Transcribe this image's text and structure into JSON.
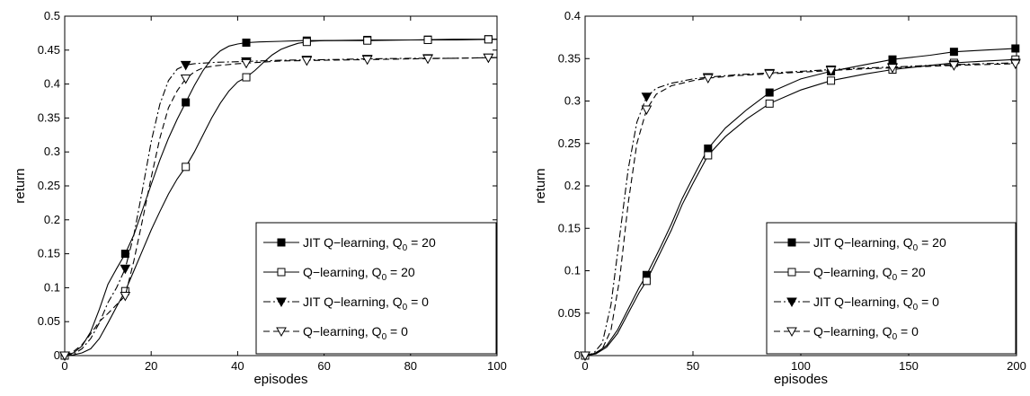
{
  "chart_data": [
    {
      "type": "line",
      "xlabel": "episodes",
      "ylabel": "return",
      "xlim": [
        0,
        100
      ],
      "ylim": [
        0,
        0.5
      ],
      "x_ticks": [
        "0",
        "20",
        "40",
        "60",
        "80",
        "100"
      ],
      "y_ticks": [
        "0",
        "0.05",
        "0.1",
        "0.15",
        "0.2",
        "0.25",
        "0.3",
        "0.35",
        "0.4",
        "0.45",
        "0.5"
      ],
      "grid": false,
      "legend_position": "bottom-right",
      "series": [
        {
          "name": "JIT Q−learning, Q",
          "name_sub": "0",
          "name_suffix": " = 20",
          "line_style": "solid",
          "marker": "filled-square",
          "marker_every": 14,
          "x": [
            0,
            2,
            4,
            6,
            8,
            10,
            12,
            14,
            16,
            18,
            20,
            22,
            24,
            26,
            28,
            30,
            32,
            34,
            36,
            38,
            40,
            42,
            45,
            50,
            55,
            60,
            70,
            80,
            90,
            100
          ],
          "y": [
            0,
            0.004,
            0.014,
            0.035,
            0.068,
            0.105,
            0.128,
            0.15,
            0.178,
            0.215,
            0.252,
            0.288,
            0.32,
            0.348,
            0.373,
            0.398,
            0.42,
            0.437,
            0.449,
            0.456,
            0.459,
            0.461,
            0.462,
            0.463,
            0.464,
            0.464,
            0.465,
            0.465,
            0.466,
            0.466
          ]
        },
        {
          "name": "Q−learning, Q",
          "name_sub": "0",
          "name_suffix": " = 20",
          "line_style": "solid",
          "marker": "open-square",
          "marker_every": 14,
          "x": [
            0,
            2,
            4,
            6,
            8,
            10,
            12,
            14,
            16,
            18,
            20,
            22,
            24,
            26,
            28,
            30,
            32,
            34,
            36,
            38,
            40,
            42,
            44,
            46,
            48,
            50,
            52,
            54,
            57,
            60,
            70,
            80,
            90,
            100
          ],
          "y": [
            0,
            0.001,
            0.004,
            0.01,
            0.025,
            0.048,
            0.072,
            0.095,
            0.125,
            0.155,
            0.185,
            0.212,
            0.238,
            0.26,
            0.278,
            0.3,
            0.325,
            0.35,
            0.372,
            0.39,
            0.403,
            0.41,
            0.42,
            0.432,
            0.443,
            0.451,
            0.456,
            0.46,
            0.463,
            0.464,
            0.464,
            0.465,
            0.465,
            0.466
          ]
        },
        {
          "name": "JIT Q−learning, Q",
          "name_sub": "0",
          "name_suffix": " = 0",
          "line_style": "dashdot",
          "marker": "filled-triangle",
          "marker_every": 14,
          "x": [
            0,
            2,
            4,
            6,
            8,
            10,
            12,
            14,
            16,
            18,
            20,
            22,
            24,
            26,
            28,
            30,
            35,
            40,
            45,
            50,
            60,
            70,
            80,
            90,
            100
          ],
          "y": [
            0,
            0.002,
            0.01,
            0.025,
            0.048,
            0.078,
            0.1,
            0.128,
            0.178,
            0.245,
            0.315,
            0.37,
            0.405,
            0.422,
            0.428,
            0.43,
            0.432,
            0.433,
            0.434,
            0.435,
            0.436,
            0.437,
            0.438,
            0.438,
            0.439
          ]
        },
        {
          "name": "Q−learning, Q",
          "name_sub": "0",
          "name_suffix": " = 0",
          "line_style": "dashed",
          "marker": "open-triangle",
          "marker_every": 14,
          "x": [
            0,
            2,
            4,
            6,
            8,
            10,
            12,
            14,
            16,
            18,
            20,
            22,
            24,
            26,
            28,
            30,
            32,
            35,
            40,
            45,
            50,
            60,
            70,
            80,
            90,
            100
          ],
          "y": [
            0,
            0.006,
            0.016,
            0.032,
            0.05,
            0.062,
            0.075,
            0.088,
            0.14,
            0.2,
            0.262,
            0.32,
            0.365,
            0.39,
            0.408,
            0.418,
            0.424,
            0.427,
            0.43,
            0.432,
            0.434,
            0.435,
            0.436,
            0.437,
            0.438,
            0.439
          ]
        }
      ]
    },
    {
      "type": "line",
      "xlabel": "episodes",
      "ylabel": "return",
      "xlim": [
        0,
        200
      ],
      "ylim": [
        0,
        0.4
      ],
      "x_ticks": [
        "0",
        "50",
        "100",
        "150",
        "200"
      ],
      "y_ticks": [
        "0",
        "0.05",
        "0.1",
        "0.15",
        "0.2",
        "0.25",
        "0.3",
        "0.35",
        "0.4"
      ],
      "grid": false,
      "legend_position": "bottom-right",
      "series": [
        {
          "name": "JIT Q−learning, Q",
          "name_sub": "0",
          "name_suffix": " = 20",
          "line_style": "solid",
          "marker": "filled-square",
          "marker_every": 28.5,
          "x": [
            0,
            5,
            10,
            15,
            20,
            25,
            28.5,
            35,
            40,
            45,
            50,
            57,
            65,
            75,
            85.5,
            100,
            114,
            130,
            142.5,
            160,
            171,
            185,
            200
          ],
          "y": [
            0,
            0.003,
            0.012,
            0.03,
            0.055,
            0.08,
            0.095,
            0.128,
            0.155,
            0.185,
            0.21,
            0.244,
            0.268,
            0.29,
            0.31,
            0.326,
            0.335,
            0.343,
            0.349,
            0.354,
            0.358,
            0.36,
            0.362
          ]
        },
        {
          "name": "Q−learning, Q",
          "name_sub": "0",
          "name_suffix": " = 20",
          "line_style": "solid",
          "marker": "open-square",
          "marker_every": 28.5,
          "x": [
            0,
            5,
            10,
            15,
            20,
            25,
            28.5,
            35,
            40,
            45,
            50,
            57,
            65,
            75,
            85.5,
            100,
            114,
            130,
            142.5,
            160,
            171,
            185,
            200
          ],
          "y": [
            0,
            0.002,
            0.01,
            0.026,
            0.05,
            0.074,
            0.088,
            0.122,
            0.148,
            0.178,
            0.203,
            0.236,
            0.258,
            0.279,
            0.297,
            0.313,
            0.324,
            0.332,
            0.337,
            0.342,
            0.345,
            0.347,
            0.349
          ]
        },
        {
          "name": "JIT Q−learning, Q",
          "name_sub": "0",
          "name_suffix": " = 0",
          "line_style": "dashdot",
          "marker": "filled-triangle",
          "marker_every": 28.5,
          "x": [
            0,
            4,
            8,
            12,
            16,
            20,
            24,
            28.5,
            33,
            40,
            50,
            57,
            70,
            85.5,
            100,
            114,
            130,
            142.5,
            160,
            171,
            185,
            200
          ],
          "y": [
            0,
            0.003,
            0.015,
            0.06,
            0.14,
            0.22,
            0.275,
            0.305,
            0.315,
            0.321,
            0.326,
            0.328,
            0.331,
            0.333,
            0.335,
            0.337,
            0.339,
            0.34,
            0.342,
            0.343,
            0.344,
            0.345
          ]
        },
        {
          "name": "Q−learning, Q",
          "name_sub": "0",
          "name_suffix": " = 0",
          "line_style": "dashed",
          "marker": "open-triangle",
          "marker_every": 28.5,
          "x": [
            0,
            4,
            8,
            12,
            16,
            20,
            24,
            28.5,
            33,
            40,
            50,
            57,
            70,
            85.5,
            100,
            114,
            130,
            142.5,
            160,
            171,
            185,
            200
          ],
          "y": [
            0,
            0.002,
            0.008,
            0.03,
            0.09,
            0.18,
            0.25,
            0.29,
            0.308,
            0.318,
            0.324,
            0.327,
            0.33,
            0.332,
            0.334,
            0.336,
            0.338,
            0.339,
            0.341,
            0.342,
            0.343,
            0.344
          ]
        }
      ]
    }
  ]
}
